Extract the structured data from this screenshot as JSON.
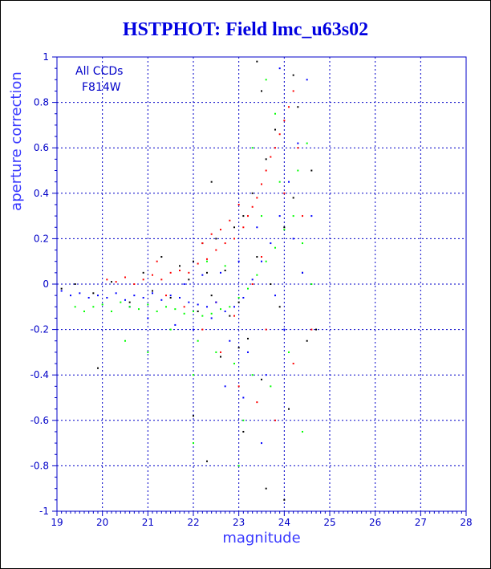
{
  "chart_data": {
    "type": "scatter",
    "title": "HSTPHOT: Field lmc_u63s02",
    "xlabel": "magnitude",
    "ylabel": "aperture correction",
    "xlim": [
      19,
      28
    ],
    "ylim": [
      -1,
      1
    ],
    "xticks": [
      "19",
      "20",
      "21",
      "22",
      "23",
      "24",
      "25",
      "26",
      "27",
      "28"
    ],
    "yticks": [
      "-1",
      "-0.8",
      "-0.6",
      "-0.4",
      "-0.2",
      "0",
      "0.2",
      "0.4",
      "0.6",
      "0.8",
      "1"
    ],
    "grid": "dashed",
    "legend": [
      "All CCDs",
      "F814W"
    ],
    "legend_position": "top-left",
    "colors": {
      "axis": "#0000c8",
      "grid": "#0000c8",
      "title": "#0000e0"
    },
    "series": [
      {
        "color": "#000000",
        "points": [
          [
            19.1,
            -0.02
          ],
          [
            19.4,
            0.0
          ],
          [
            19.8,
            -0.04
          ],
          [
            20.2,
            0.01
          ],
          [
            20.6,
            -0.08
          ],
          [
            20.9,
            0.05
          ],
          [
            21.1,
            -0.03
          ],
          [
            21.3,
            0.12
          ],
          [
            21.5,
            -0.06
          ],
          [
            21.7,
            0.08
          ],
          [
            21.9,
            0.02
          ],
          [
            22.0,
            0.1
          ],
          [
            22.1,
            -0.12
          ],
          [
            22.2,
            0.18
          ],
          [
            22.3,
            0.05
          ],
          [
            22.4,
            -0.05
          ],
          [
            22.5,
            0.2
          ],
          [
            22.6,
            -0.32
          ],
          [
            22.7,
            0.06
          ],
          [
            22.8,
            -0.14
          ],
          [
            22.9,
            0.25
          ],
          [
            23.0,
            -0.08
          ],
          [
            23.1,
            0.3
          ],
          [
            23.2,
            -0.24
          ],
          [
            23.3,
            0.4
          ],
          [
            23.4,
            0.12
          ],
          [
            23.5,
            -0.42
          ],
          [
            23.6,
            0.55
          ],
          [
            23.7,
            0.0
          ],
          [
            23.8,
            0.68
          ],
          [
            23.9,
            -0.1
          ],
          [
            24.0,
            0.25
          ],
          [
            24.1,
            -0.55
          ],
          [
            24.2,
            0.38
          ],
          [
            24.3,
            0.78
          ],
          [
            24.4,
            0.05
          ],
          [
            24.5,
            -0.25
          ],
          [
            24.6,
            0.5
          ],
          [
            23.0,
            -0.28
          ],
          [
            22.4,
            0.45
          ],
          [
            23.4,
            0.98
          ],
          [
            24.2,
            0.92
          ],
          [
            23.1,
            -0.65
          ],
          [
            24.0,
            -0.95
          ],
          [
            22.3,
            -0.78
          ],
          [
            23.6,
            -0.9
          ],
          [
            19.9,
            -0.37
          ],
          [
            22.0,
            -0.58
          ],
          [
            24.7,
            -0.2
          ],
          [
            23.5,
            0.85
          ]
        ]
      },
      {
        "color": "#ff0000",
        "points": [
          [
            20.1,
            0.02
          ],
          [
            20.3,
            0.01
          ],
          [
            20.5,
            0.03
          ],
          [
            20.7,
            0.0
          ],
          [
            20.9,
            0.02
          ],
          [
            21.1,
            0.04
          ],
          [
            21.3,
            0.02
          ],
          [
            21.5,
            0.05
          ],
          [
            21.7,
            0.06
          ],
          [
            21.9,
            0.05
          ],
          [
            22.1,
            0.09
          ],
          [
            22.3,
            0.11
          ],
          [
            22.5,
            0.15
          ],
          [
            22.7,
            0.18
          ],
          [
            22.9,
            0.2
          ],
          [
            23.1,
            0.25
          ],
          [
            23.2,
            0.3
          ],
          [
            23.3,
            0.34
          ],
          [
            23.4,
            0.38
          ],
          [
            23.5,
            0.44
          ],
          [
            23.6,
            0.5
          ],
          [
            23.7,
            0.56
          ],
          [
            23.8,
            0.6
          ],
          [
            23.9,
            0.66
          ],
          [
            24.0,
            0.72
          ],
          [
            24.1,
            0.78
          ],
          [
            24.2,
            0.85
          ],
          [
            22.2,
            0.18
          ],
          [
            22.4,
            0.22
          ],
          [
            22.6,
            0.24
          ],
          [
            22.8,
            0.28
          ],
          [
            23.0,
            0.35
          ],
          [
            21.4,
            -0.05
          ],
          [
            21.8,
            -0.1
          ],
          [
            22.2,
            -0.2
          ],
          [
            22.6,
            -0.3
          ],
          [
            23.0,
            -0.45
          ],
          [
            23.4,
            -0.52
          ],
          [
            23.8,
            -0.6
          ],
          [
            24.2,
            -0.35
          ],
          [
            22.9,
            -0.14
          ],
          [
            23.5,
            0.12
          ],
          [
            24.4,
            0.3
          ],
          [
            23.3,
            0.0
          ],
          [
            24.0,
            0.4
          ],
          [
            24.3,
            0.6
          ],
          [
            22.5,
            -0.08
          ],
          [
            21.2,
            0.1
          ],
          [
            23.6,
            -0.2
          ],
          [
            24.6,
            -0.2
          ]
        ]
      },
      {
        "color": "#0000ff",
        "points": [
          [
            19.1,
            -0.03
          ],
          [
            19.3,
            -0.05
          ],
          [
            19.5,
            -0.04
          ],
          [
            19.7,
            -0.06
          ],
          [
            19.9,
            -0.05
          ],
          [
            20.1,
            -0.06
          ],
          [
            20.3,
            -0.04
          ],
          [
            20.5,
            -0.07
          ],
          [
            20.7,
            -0.05
          ],
          [
            20.9,
            -0.06
          ],
          [
            21.1,
            -0.04
          ],
          [
            21.3,
            -0.07
          ],
          [
            21.5,
            -0.05
          ],
          [
            21.7,
            -0.06
          ],
          [
            21.9,
            -0.08
          ],
          [
            22.1,
            -0.09
          ],
          [
            22.3,
            -0.1
          ],
          [
            22.5,
            -0.08
          ],
          [
            22.7,
            -0.12
          ],
          [
            22.9,
            -0.1
          ],
          [
            23.1,
            -0.06
          ],
          [
            23.3,
            0.02
          ],
          [
            23.5,
            0.1
          ],
          [
            23.7,
            0.18
          ],
          [
            23.9,
            0.3
          ],
          [
            24.1,
            0.45
          ],
          [
            24.3,
            0.62
          ],
          [
            24.5,
            0.9
          ],
          [
            21.0,
            -0.15
          ],
          [
            21.6,
            -0.18
          ],
          [
            22.0,
            -0.2
          ],
          [
            22.4,
            -0.15
          ],
          [
            22.8,
            -0.25
          ],
          [
            23.2,
            -0.3
          ],
          [
            23.6,
            -0.4
          ],
          [
            24.0,
            -0.2
          ],
          [
            22.6,
            0.05
          ],
          [
            23.0,
            0.1
          ],
          [
            23.4,
            0.25
          ],
          [
            24.2,
            0.2
          ],
          [
            21.8,
            0.0
          ],
          [
            22.2,
            0.04
          ],
          [
            23.8,
            -0.05
          ],
          [
            24.4,
            0.05
          ],
          [
            20.6,
            -0.1
          ],
          [
            23.1,
            -0.5
          ],
          [
            23.5,
            -0.7
          ],
          [
            22.7,
            -0.45
          ],
          [
            23.9,
            0.95
          ],
          [
            24.6,
            0.3
          ]
        ]
      },
      {
        "color": "#00ff00",
        "points": [
          [
            19.4,
            -0.1
          ],
          [
            19.6,
            -0.12
          ],
          [
            19.8,
            -0.1
          ],
          [
            20.0,
            -0.09
          ],
          [
            20.2,
            -0.12
          ],
          [
            20.4,
            -0.08
          ],
          [
            20.6,
            -0.1
          ],
          [
            20.8,
            -0.11
          ],
          [
            21.0,
            -0.09
          ],
          [
            21.2,
            -0.12
          ],
          [
            21.4,
            -0.1
          ],
          [
            21.6,
            -0.11
          ],
          [
            21.8,
            -0.13
          ],
          [
            22.0,
            -0.12
          ],
          [
            22.2,
            -0.14
          ],
          [
            22.4,
            -0.13
          ],
          [
            22.6,
            -0.11
          ],
          [
            22.8,
            -0.1
          ],
          [
            23.0,
            -0.06
          ],
          [
            23.2,
            -0.02
          ],
          [
            23.4,
            0.04
          ],
          [
            23.6,
            0.1
          ],
          [
            23.8,
            0.16
          ],
          [
            24.0,
            0.24
          ],
          [
            24.2,
            0.3
          ],
          [
            24.4,
            0.18
          ],
          [
            21.5,
            -0.2
          ],
          [
            22.1,
            -0.25
          ],
          [
            22.5,
            -0.3
          ],
          [
            22.9,
            -0.35
          ],
          [
            23.3,
            -0.4
          ],
          [
            23.7,
            -0.45
          ],
          [
            24.1,
            -0.3
          ],
          [
            22.0,
            -0.4
          ],
          [
            23.1,
            -0.6
          ],
          [
            23.5,
            0.3
          ],
          [
            23.9,
            0.45
          ],
          [
            24.3,
            0.5
          ],
          [
            23.3,
            0.6
          ],
          [
            23.6,
            0.9
          ],
          [
            23.8,
            0.75
          ],
          [
            24.5,
            0.62
          ],
          [
            20.5,
            -0.25
          ],
          [
            21.0,
            -0.3
          ],
          [
            22.3,
            0.1
          ],
          [
            22.7,
            0.08
          ],
          [
            24.6,
            0.0
          ],
          [
            23.0,
            -0.8
          ],
          [
            22.0,
            -0.7
          ],
          [
            24.4,
            -0.65
          ]
        ]
      }
    ]
  }
}
